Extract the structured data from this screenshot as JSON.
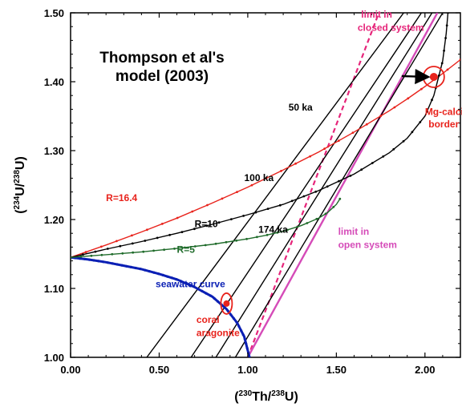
{
  "chart_data": {
    "type": "line",
    "title_lines": [
      "Thompson et al's",
      "model (2003)"
    ],
    "xlabel": "(230Th/238U)",
    "ylabel": "(234U/238U)",
    "xlim": [
      0,
      2.2
    ],
    "ylim": [
      1.0,
      1.5
    ],
    "xticks": [
      0.0,
      0.5,
      1.0,
      1.5,
      2.0
    ],
    "xtick_labels": [
      "0.00",
      "0.50",
      "1.00",
      "1.50",
      "2.00"
    ],
    "yticks": [
      1.0,
      1.1,
      1.2,
      1.3,
      1.4,
      1.5
    ],
    "ytick_labels": [
      "1.00",
      "1.10",
      "1.20",
      "1.30",
      "1.40",
      "1.50"
    ],
    "colors": {
      "seawater": "#0a1fb4",
      "r16": "#e8231c",
      "r10": "#000000",
      "r5": "#1f6b2a",
      "isochron": "#000000",
      "closed": "#e6257a",
      "open": "#d54bb8",
      "coral": "#e8231c",
      "mgcalcite": "#e8231c"
    },
    "series": [
      {
        "key": "seawater",
        "name": "seawater curve",
        "points": [
          [
            0.0,
            1.145
          ],
          [
            0.1,
            1.142
          ],
          [
            0.2,
            1.138
          ],
          [
            0.3,
            1.133
          ],
          [
            0.4,
            1.128
          ],
          [
            0.5,
            1.121
          ],
          [
            0.6,
            1.113
          ],
          [
            0.7,
            1.102
          ],
          [
            0.8,
            1.088
          ],
          [
            0.88,
            1.07
          ],
          [
            0.94,
            1.05
          ],
          [
            0.98,
            1.03
          ],
          [
            1.0,
            1.01
          ],
          [
            1.01,
            1.0
          ]
        ]
      },
      {
        "key": "r16",
        "name": "R=16.4",
        "points": [
          [
            0.0,
            1.145
          ],
          [
            0.2,
            1.163
          ],
          [
            0.4,
            1.182
          ],
          [
            0.6,
            1.202
          ],
          [
            0.8,
            1.224
          ],
          [
            1.0,
            1.247
          ],
          [
            1.2,
            1.272
          ],
          [
            1.4,
            1.298
          ],
          [
            1.6,
            1.327
          ],
          [
            1.8,
            1.358
          ],
          [
            1.9,
            1.375
          ],
          [
            2.0,
            1.393
          ],
          [
            2.1,
            1.412
          ],
          [
            2.2,
            1.432
          ]
        ]
      },
      {
        "key": "r10",
        "name": "R=10",
        "points": [
          [
            0.0,
            1.145
          ],
          [
            0.2,
            1.157
          ],
          [
            0.4,
            1.168
          ],
          [
            0.6,
            1.18
          ],
          [
            0.8,
            1.193
          ],
          [
            1.0,
            1.207
          ],
          [
            1.2,
            1.222
          ],
          [
            1.4,
            1.242
          ],
          [
            1.6,
            1.266
          ],
          [
            1.8,
            1.297
          ],
          [
            1.9,
            1.318
          ],
          [
            2.0,
            1.35
          ],
          [
            2.05,
            1.38
          ],
          [
            2.1,
            1.43
          ],
          [
            2.12,
            1.47
          ],
          [
            2.13,
            1.5
          ]
        ]
      },
      {
        "key": "r5",
        "name": "R=5",
        "points": [
          [
            0.0,
            1.145
          ],
          [
            0.2,
            1.149
          ],
          [
            0.4,
            1.153
          ],
          [
            0.6,
            1.158
          ],
          [
            0.8,
            1.164
          ],
          [
            1.0,
            1.172
          ],
          [
            1.1,
            1.177
          ],
          [
            1.2,
            1.183
          ],
          [
            1.3,
            1.191
          ],
          [
            1.4,
            1.202
          ],
          [
            1.45,
            1.21
          ],
          [
            1.5,
            1.222
          ],
          [
            1.52,
            1.23
          ]
        ]
      }
    ],
    "isochrons": [
      {
        "label": "",
        "points": [
          [
            0.43,
            1.0
          ],
          [
            1.88,
            1.5
          ]
        ]
      },
      {
        "label": "",
        "points": [
          [
            0.68,
            1.0
          ],
          [
            1.98,
            1.5
          ]
        ]
      },
      {
        "label": "",
        "points": [
          [
            0.82,
            1.0
          ],
          [
            2.04,
            1.5
          ]
        ]
      },
      {
        "label": "",
        "points": [
          [
            0.93,
            1.0
          ],
          [
            2.1,
            1.5
          ]
        ]
      }
    ],
    "closed_system_line": [
      [
        1.0,
        1.0
      ],
      [
        1.74,
        1.5
      ]
    ],
    "open_system_line": [
      [
        1.0,
        1.0
      ],
      [
        2.07,
        1.5
      ]
    ],
    "coral_aragonite_point": {
      "x": 0.88,
      "y": 1.078
    },
    "mg_calcite_point": {
      "x": 2.05,
      "y": 1.407
    },
    "annotations": [
      {
        "text": "50 ka",
        "x": 1.23,
        "y": 1.358,
        "color": "#000000",
        "size": 12
      },
      {
        "text": "100 ka",
        "x": 0.98,
        "y": 1.256,
        "color": "#000000",
        "size": 12
      },
      {
        "text": "174 ka",
        "x": 1.06,
        "y": 1.181,
        "color": "#000000",
        "size": 12
      },
      {
        "text": "R=16.4",
        "x": 0.2,
        "y": 1.227,
        "color": "#e8231c",
        "size": 12
      },
      {
        "text": "R=10",
        "x": 0.7,
        "y": 1.189,
        "color": "#000000",
        "size": 12
      },
      {
        "text": "R=5",
        "x": 0.6,
        "y": 1.152,
        "color": "#1f6b2a",
        "size": 12
      },
      {
        "text": "seawater curve",
        "x": 0.48,
        "y": 1.102,
        "color": "#0a1fb4",
        "size": 12
      },
      {
        "text": "coral",
        "x": 0.71,
        "y": 1.05,
        "color": "#e8231c",
        "size": 12
      },
      {
        "text": "aragonite",
        "x": 0.71,
        "y": 1.031,
        "color": "#e8231c",
        "size": 12
      },
      {
        "text": "limit in",
        "x": 1.51,
        "y": 1.178,
        "color": "#d54bb8",
        "size": 12
      },
      {
        "text": "open system",
        "x": 1.51,
        "y": 1.159,
        "color": "#d54bb8",
        "size": 12
      },
      {
        "text": "limit in",
        "x": 1.64,
        "y": 1.493,
        "color": "#e6257a",
        "size": 12
      },
      {
        "text": "closed system",
        "x": 1.62,
        "y": 1.474,
        "color": "#e6257a",
        "size": 12
      },
      {
        "text": "Mg-calcite",
        "x": 2.0,
        "y": 1.352,
        "color": "#e8231c",
        "size": 12
      },
      {
        "text": "border",
        "x": 2.02,
        "y": 1.334,
        "color": "#e8231c",
        "size": 12
      }
    ]
  }
}
